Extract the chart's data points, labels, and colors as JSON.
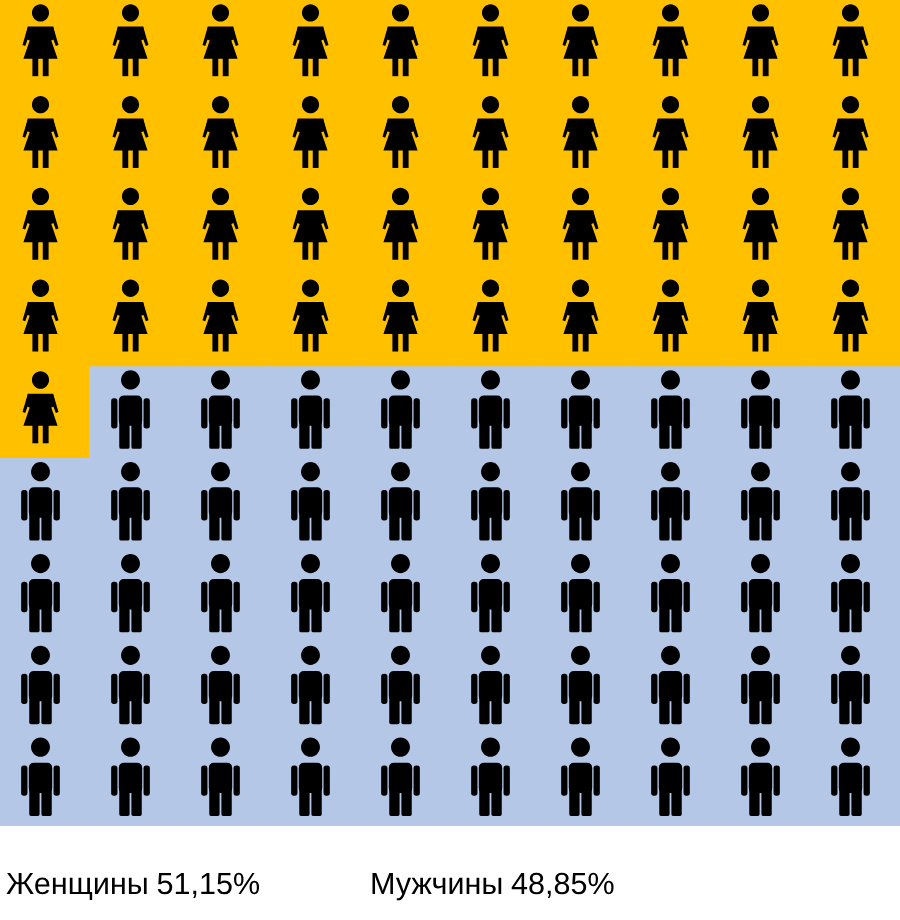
{
  "chart_data": {
    "type": "other",
    "categories": [
      "Женщины",
      "Мужчины"
    ],
    "values": [
      51.15,
      48.85
    ],
    "value_labels": [
      "51,15%",
      "48,85%"
    ],
    "colors": [
      "#ffc000",
      "#b4c7e7"
    ]
  }
}
